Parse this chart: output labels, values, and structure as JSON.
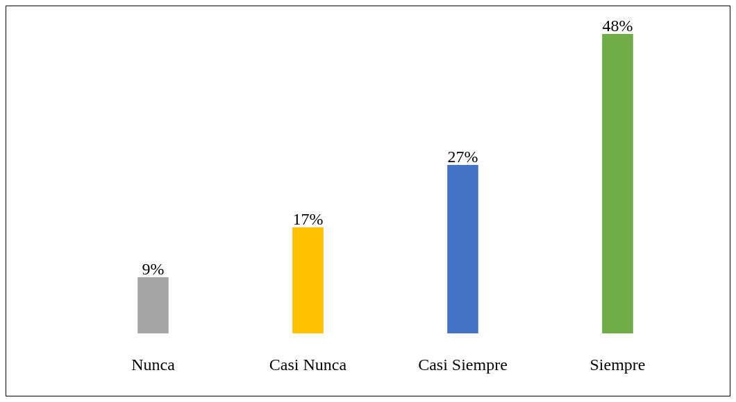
{
  "chart_data": {
    "type": "bar",
    "categories": [
      "Nunca",
      "Casi Nunca",
      "Casi Siempre",
      "Siempre"
    ],
    "values": [
      9,
      17,
      27,
      48
    ],
    "colors": [
      "#a5a5a5",
      "#ffc000",
      "#4472c4",
      "#70ad47"
    ],
    "value_labels": [
      "9%",
      "17%",
      "27%",
      "48%"
    ],
    "tick_labels": "x",
    "legend": false
  }
}
